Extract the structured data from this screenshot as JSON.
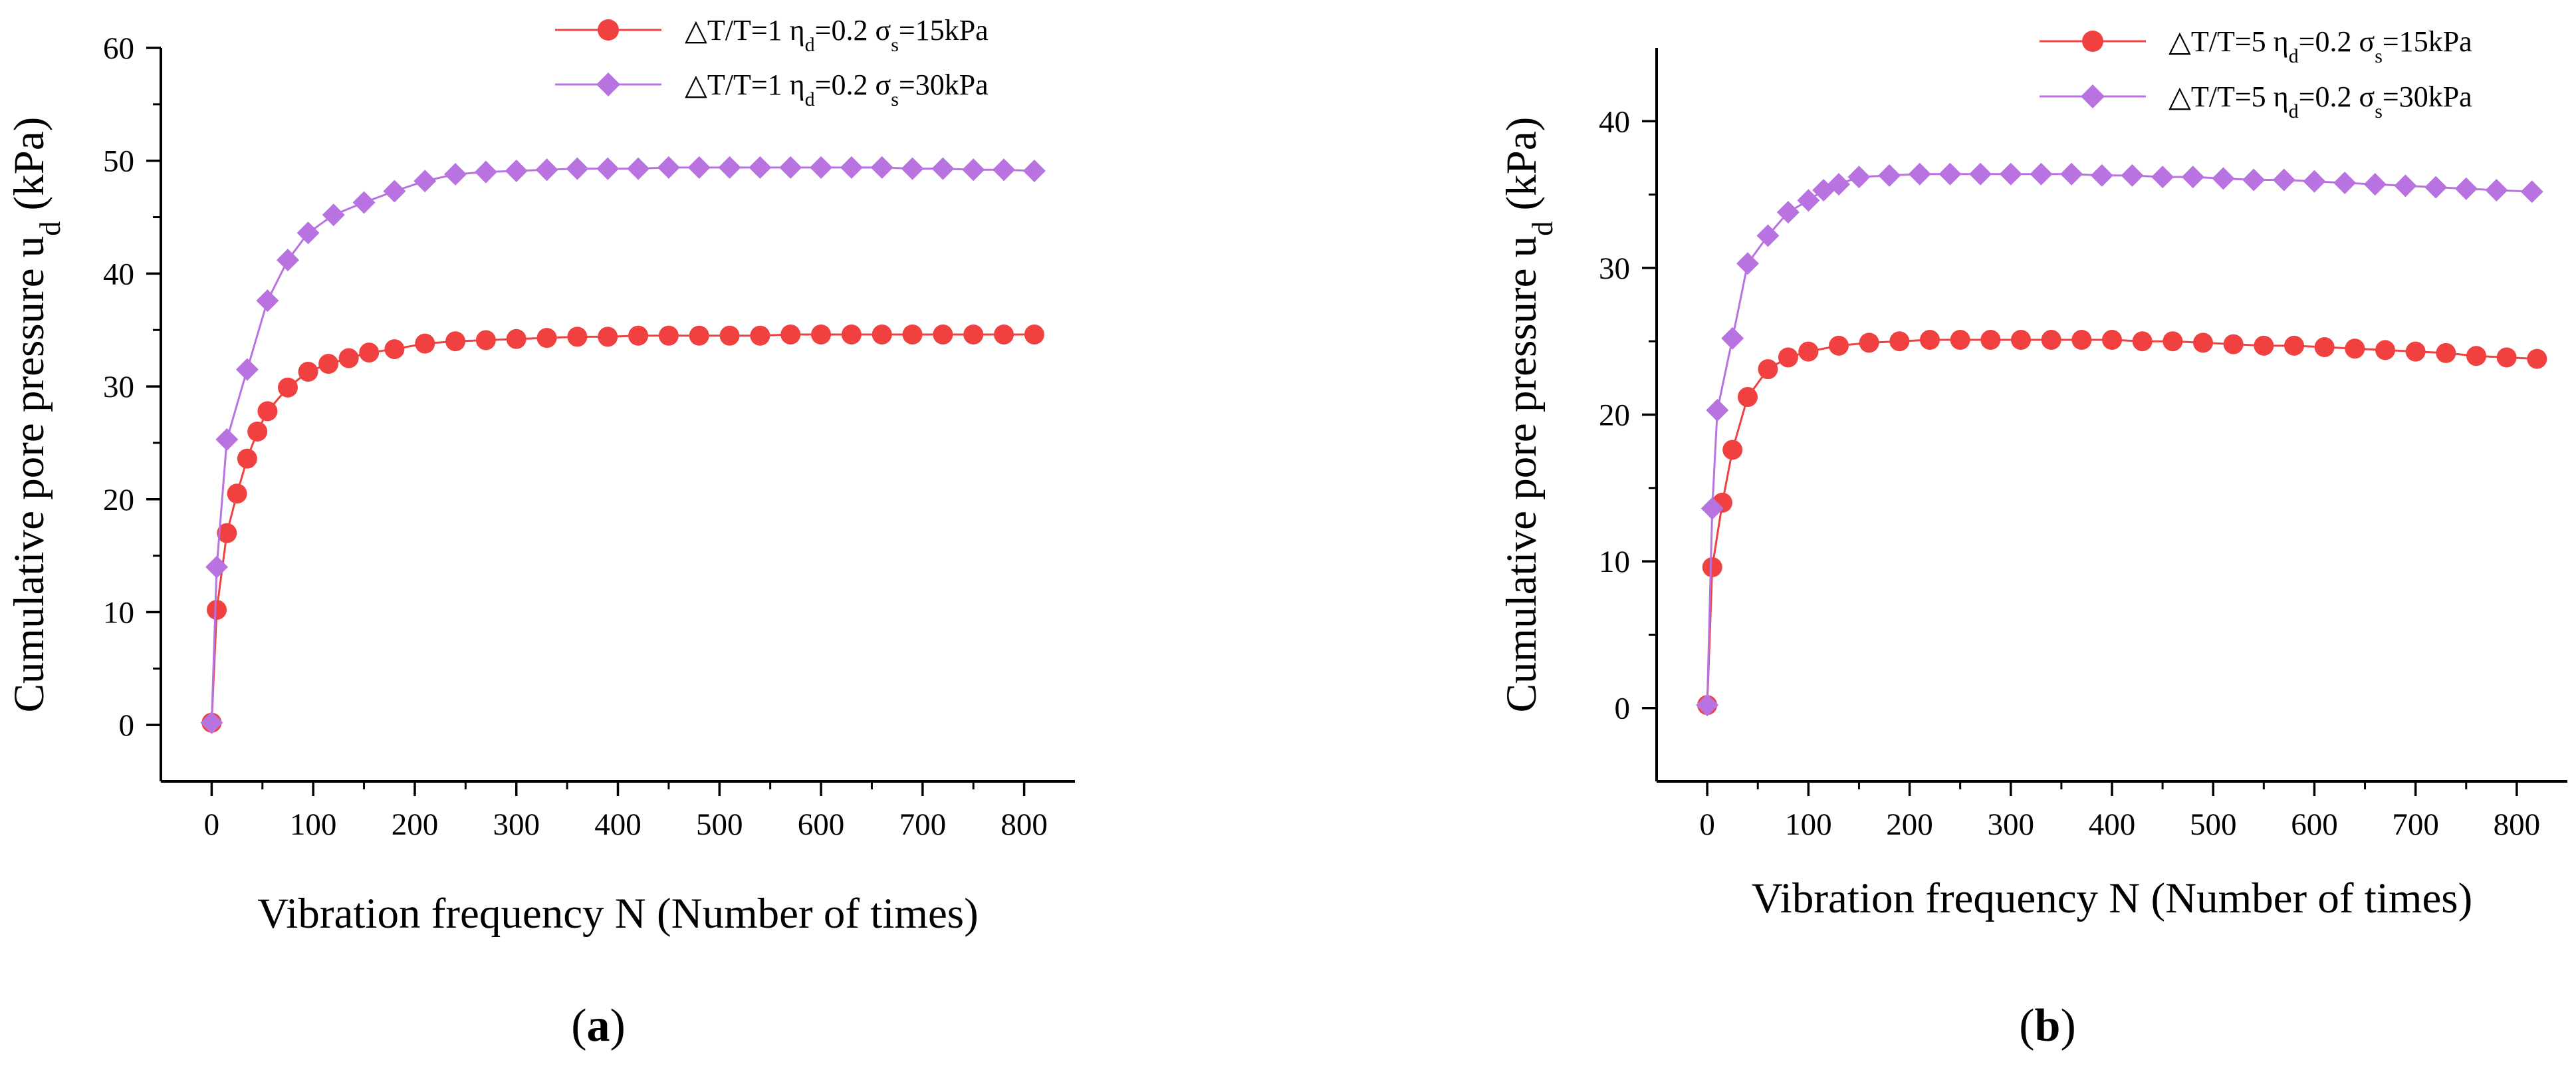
{
  "figure": {
    "panels": [
      {
        "id": "a",
        "label_open": "(",
        "label_letter": "a",
        "label_close": ")"
      },
      {
        "id": "b",
        "label_open": "(",
        "label_letter": "b",
        "label_close": ")"
      }
    ]
  },
  "chart_data": [
    {
      "panel": "a",
      "type": "line",
      "xlabel": "Vibration frequency N (Number of times)",
      "ylabel": "Cumulative pore pressure u",
      "ylabel_sub": "d",
      "ylabel_unit": " (kPa)",
      "xlim": [
        -50,
        850
      ],
      "ylim": [
        -5,
        60
      ],
      "xticks": [
        0,
        100,
        200,
        300,
        400,
        500,
        600,
        700,
        800
      ],
      "yticks": [
        0,
        10,
        20,
        30,
        40,
        50,
        60
      ],
      "legend_position": "top-right",
      "series": [
        {
          "name": "ΔT/T=1 ηd=0.2 σs=15kPa",
          "legend_prefix": "△T/T=1 η",
          "legend_mid1": "=0.2 σ",
          "legend_suffix": "=15kPa",
          "color": "#f04040",
          "marker": "circle",
          "x": [
            0,
            5,
            15,
            25,
            35,
            45,
            55,
            75,
            95,
            115,
            135,
            155,
            180,
            210,
            240,
            270,
            300,
            330,
            360,
            390,
            420,
            450,
            480,
            510,
            540,
            570,
            600,
            630,
            660,
            690,
            720,
            750,
            780,
            810
          ],
          "y": [
            0.2,
            10.2,
            17.0,
            20.5,
            23.6,
            26.0,
            27.8,
            29.9,
            31.3,
            32.0,
            32.5,
            33.0,
            33.3,
            33.8,
            34.0,
            34.1,
            34.2,
            34.3,
            34.4,
            34.4,
            34.5,
            34.5,
            34.5,
            34.5,
            34.5,
            34.6,
            34.6,
            34.6,
            34.6,
            34.6,
            34.6,
            34.6,
            34.6,
            34.6
          ]
        },
        {
          "name": "ΔT/T=1 ηd=0.2 σs=30kPa",
          "legend_prefix": "△T/T=1 η",
          "legend_mid1": "=0.2 σ",
          "legend_suffix": "=30kPa",
          "color": "#b873e0",
          "marker": "diamond",
          "x": [
            0,
            5,
            15,
            35,
            55,
            75,
            95,
            120,
            150,
            180,
            210,
            240,
            270,
            300,
            330,
            360,
            390,
            420,
            450,
            480,
            510,
            540,
            570,
            600,
            630,
            660,
            690,
            720,
            750,
            780,
            810
          ],
          "y": [
            0.2,
            14.0,
            25.3,
            31.5,
            37.6,
            41.2,
            43.6,
            45.2,
            46.3,
            47.3,
            48.2,
            48.8,
            49.0,
            49.1,
            49.2,
            49.3,
            49.3,
            49.3,
            49.4,
            49.4,
            49.4,
            49.4,
            49.4,
            49.4,
            49.4,
            49.4,
            49.3,
            49.3,
            49.2,
            49.2,
            49.1
          ]
        }
      ]
    },
    {
      "panel": "b",
      "type": "line",
      "xlabel": "Vibration frequency N (Number of times)",
      "ylabel": "Cumulative pore pressure u",
      "ylabel_sub": "d",
      "ylabel_unit": " (kPa)",
      "xlim": [
        -50,
        850
      ],
      "ylim": [
        -5,
        45
      ],
      "xticks": [
        0,
        100,
        200,
        300,
        400,
        500,
        600,
        700,
        800
      ],
      "yticks": [
        0,
        10,
        20,
        30,
        40
      ],
      "legend_position": "top-right",
      "series": [
        {
          "name": "ΔT/T=5 ηd=0.2 σs=15kPa",
          "legend_prefix": "△T/T=5 η",
          "legend_mid1": "=0.2 σ",
          "legend_suffix": "=15kPa",
          "color": "#f04040",
          "marker": "circle",
          "x": [
            0,
            5,
            15,
            25,
            40,
            60,
            80,
            100,
            130,
            160,
            190,
            220,
            250,
            280,
            310,
            340,
            370,
            400,
            430,
            460,
            490,
            520,
            550,
            580,
            610,
            640,
            670,
            700,
            730,
            760,
            790,
            820
          ],
          "y": [
            0.2,
            9.6,
            14.0,
            17.6,
            21.2,
            23.1,
            23.9,
            24.3,
            24.7,
            24.9,
            25.0,
            25.1,
            25.1,
            25.1,
            25.1,
            25.1,
            25.1,
            25.1,
            25.0,
            25.0,
            24.9,
            24.8,
            24.7,
            24.7,
            24.6,
            24.5,
            24.4,
            24.3,
            24.2,
            24.0,
            23.9,
            23.8
          ]
        },
        {
          "name": "ΔT/T=5 ηd=0.2 σs=30kPa",
          "legend_prefix": "△T/T=5 η",
          "legend_mid1": "=0.2 σ",
          "legend_suffix": "=30kPa",
          "color": "#b873e0",
          "marker": "diamond",
          "x": [
            0,
            5,
            10,
            25,
            40,
            60,
            80,
            100,
            115,
            130,
            150,
            180,
            210,
            240,
            270,
            300,
            330,
            360,
            390,
            420,
            450,
            480,
            510,
            540,
            570,
            600,
            630,
            660,
            690,
            720,
            750,
            780,
            815
          ],
          "y": [
            0.2,
            13.6,
            20.3,
            25.2,
            30.3,
            32.2,
            33.8,
            34.6,
            35.3,
            35.7,
            36.2,
            36.3,
            36.4,
            36.4,
            36.4,
            36.4,
            36.4,
            36.4,
            36.3,
            36.3,
            36.2,
            36.2,
            36.1,
            36.0,
            36.0,
            35.9,
            35.8,
            35.7,
            35.6,
            35.5,
            35.4,
            35.3,
            35.2
          ]
        }
      ]
    }
  ]
}
